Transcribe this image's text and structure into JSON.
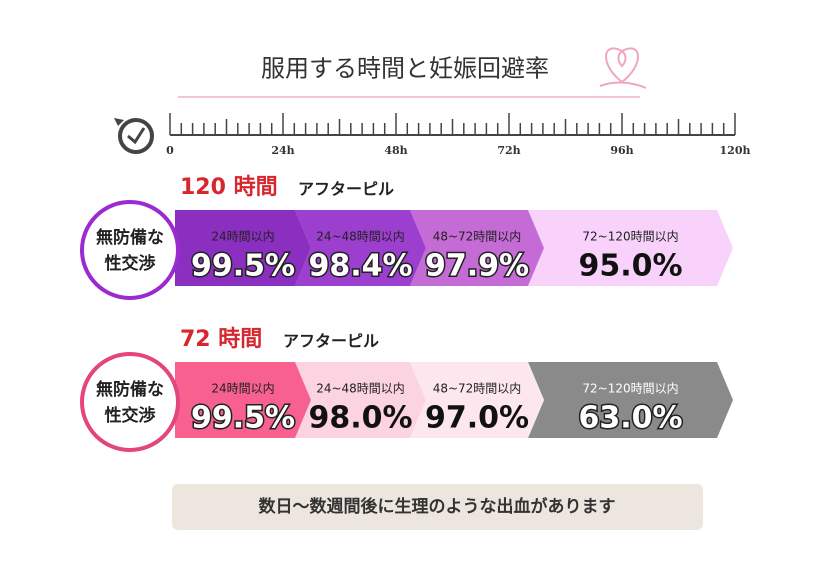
{
  "title": "服用する時間と妊娠回避率",
  "timeline": {
    "labels": [
      "0",
      "24h",
      "48h",
      "72h",
      "96h",
      "120h"
    ]
  },
  "sections": [
    {
      "hours": "120 時間",
      "pill": "アフターピル",
      "badge": [
        "無防備な",
        "性交渉"
      ],
      "badge_color": "#9b2bd0",
      "segments": [
        {
          "label": "24時間以内",
          "rate": "99.5%",
          "color": "#8a2fc0"
        },
        {
          "label": "24~48時間以内",
          "rate": "98.4%",
          "color": "#9c3fce"
        },
        {
          "label": "48~72時間以内",
          "rate": "97.9%",
          "color": "#c56bd6"
        },
        {
          "label": "72~120時間以内",
          "rate": "95.0%",
          "color": "#f8d2fb"
        }
      ]
    },
    {
      "hours": "72 時間",
      "pill": "アフターピル",
      "badge": [
        "無防備な",
        "性交渉"
      ],
      "badge_color": "#e4457f",
      "segments": [
        {
          "label": "24時間以内",
          "rate": "99.5%",
          "color": "#f7608f"
        },
        {
          "label": "24~48時間以内",
          "rate": "98.0%",
          "color": "#fcd3e0"
        },
        {
          "label": "48~72時間以内",
          "rate": "97.0%",
          "color": "#fde7ef"
        },
        {
          "label": "72~120時間以内",
          "rate": "63.0%",
          "color": "#8a8a8a"
        }
      ]
    }
  ],
  "footer": "数日〜数週間後に生理のような出血があります"
}
